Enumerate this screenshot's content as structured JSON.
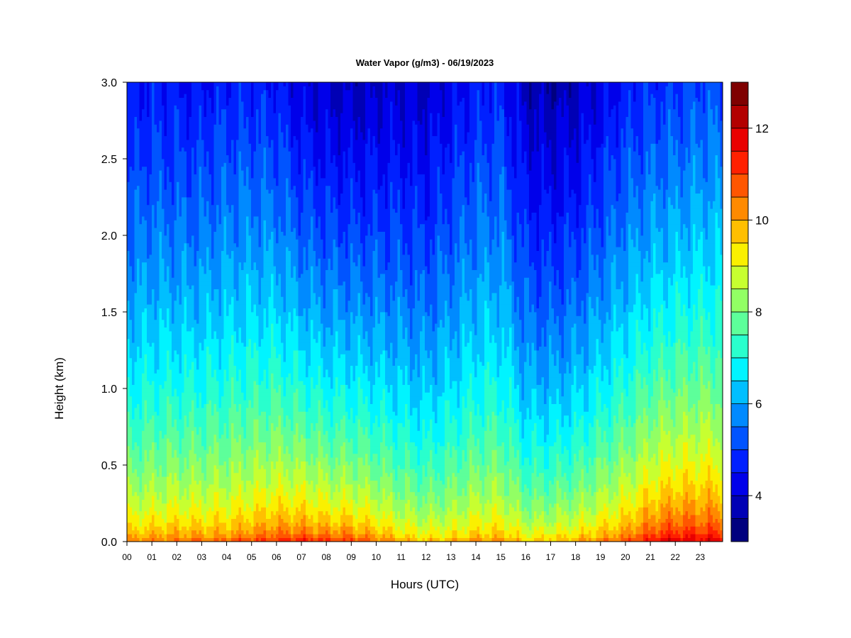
{
  "chart_data": {
    "type": "heatmap",
    "title": "Water Vapor (g/m3) - 06/19/2023",
    "xlabel": "Hours (UTC)",
    "ylabel": "Height (km)",
    "xlim": [
      0,
      23.9
    ],
    "ylim": [
      0.0,
      3.0
    ],
    "x_ticks": [
      0,
      1,
      2,
      3,
      4,
      5,
      6,
      7,
      8,
      9,
      10,
      11,
      12,
      13,
      14,
      15,
      16,
      17,
      18,
      19,
      20,
      21,
      22,
      23
    ],
    "x_tick_labels": [
      "00",
      "01",
      "02",
      "03",
      "04",
      "05",
      "06",
      "07",
      "08",
      "09",
      "10",
      "11",
      "12",
      "13",
      "14",
      "15",
      "16",
      "17",
      "18",
      "19",
      "20",
      "21",
      "22",
      "23"
    ],
    "y_ticks": [
      0.0,
      0.5,
      1.0,
      1.5,
      2.0,
      2.5,
      3.0
    ],
    "y_tick_labels": [
      "0.0",
      "0.5",
      "1.0",
      "1.5",
      "2.0",
      "2.5",
      "3.0"
    ],
    "colorbar": {
      "levels": [
        3.0,
        3.5,
        4.0,
        4.5,
        5.0,
        5.5,
        6.0,
        6.5,
        7.0,
        7.5,
        8.0,
        8.5,
        9.0,
        9.5,
        10.0,
        10.5,
        11.0,
        11.5,
        12.0,
        12.5,
        13.0
      ],
      "colors": [
        "#00007f",
        "#0000b5",
        "#0000ea",
        "#0020ff",
        "#0054ff",
        "#008aff",
        "#00bfff",
        "#00f4ff",
        "#29ffcd",
        "#5dff9a",
        "#92ff64",
        "#c7ff30",
        "#faf000",
        "#ffbf00",
        "#ff8a00",
        "#ff5600",
        "#ff2000",
        "#e90000",
        "#b30000",
        "#7f0000"
      ],
      "tick_values": [
        4,
        6,
        8,
        10,
        12
      ],
      "tick_labels": [
        "4",
        "6",
        "8",
        "10",
        "12"
      ]
    },
    "surface_values_by_hour": [
      10.7,
      10.8,
      11.0,
      11.0,
      11.0,
      11.3,
      11.6,
      11.8,
      11.5,
      11.5,
      11.0,
      10.4,
      10.1,
      10.2,
      10.5,
      10.6,
      10.0,
      10.2,
      10.4,
      10.8,
      11.2,
      12.0,
      12.4,
      12.3
    ],
    "top_values_by_hour": [
      4.4,
      4.6,
      4.5,
      4.5,
      4.7,
      4.7,
      4.6,
      4.1,
      3.9,
      3.8,
      3.9,
      4.0,
      3.9,
      4.3,
      4.6,
      4.7,
      3.8,
      3.6,
      3.8,
      4.2,
      4.6,
      4.8,
      4.9,
      5.1
    ]
  }
}
